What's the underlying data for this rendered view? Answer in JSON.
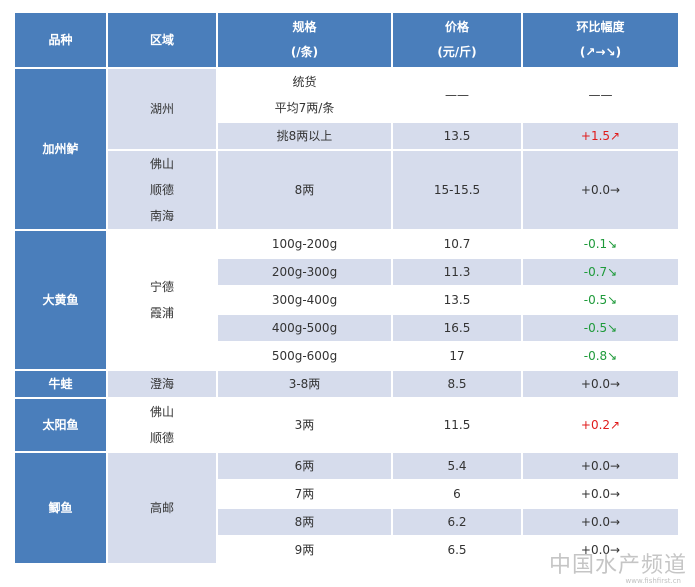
{
  "header": {
    "kind": "品种",
    "region": "区域",
    "spec_l1": "规格",
    "spec_l2": "(/条)",
    "price_l1": "价格",
    "price_l2": "(元/斤)",
    "change_l1": "环比幅度",
    "change_l2": "(↗→↘)"
  },
  "groups": {
    "bass": {
      "kind": "加州鲈",
      "huzhou": "湖州",
      "r1_spec_l1": "统货",
      "r1_spec_l2": "平均7两/条",
      "r1_price": "——",
      "r1_change": "——",
      "r2_spec": "挑8两以上",
      "r2_price": "13.5",
      "r2_change": "+1.5↗",
      "region2_l1": "佛山",
      "region2_l2": "顺德",
      "region2_l3": "南海",
      "r3_spec": "8两",
      "r3_price": "15-15.5",
      "r3_change": "+0.0→"
    },
    "croaker": {
      "kind": "大黄鱼",
      "region_l1": "宁德",
      "region_l2": "霞浦",
      "rows": [
        {
          "spec": "100g-200g",
          "price": "10.7",
          "change": "-0.1↘"
        },
        {
          "spec": "200g-300g",
          "price": "11.3",
          "change": "-0.7↘"
        },
        {
          "spec": "300g-400g",
          "price": "13.5",
          "change": "-0.5↘"
        },
        {
          "spec": "400g-500g",
          "price": "16.5",
          "change": "-0.5↘"
        },
        {
          "spec": "500g-600g",
          "price": "17",
          "change": "-0.8↘"
        }
      ]
    },
    "frog": {
      "kind": "牛蛙",
      "region": "澄海",
      "spec": "3-8两",
      "price": "8.5",
      "change": "+0.0→"
    },
    "sunfish": {
      "kind": "太阳鱼",
      "region_l1": "佛山",
      "region_l2": "顺德",
      "spec": "3两",
      "price": "11.5",
      "change": "+0.2↗"
    },
    "crucian": {
      "kind": "鲫鱼",
      "region": "高邮",
      "rows": [
        {
          "spec": "6两",
          "price": "5.4",
          "change": "+0.0→"
        },
        {
          "spec": "7两",
          "price": "6",
          "change": "+0.0→"
        },
        {
          "spec": "8两",
          "price": "6.2",
          "change": "+0.0→"
        },
        {
          "spec": "9两",
          "price": "6.5",
          "change": "+0.0→"
        }
      ]
    }
  },
  "watermark": {
    "text": "中国水产频道",
    "url": "www.fishfirst.cn"
  }
}
